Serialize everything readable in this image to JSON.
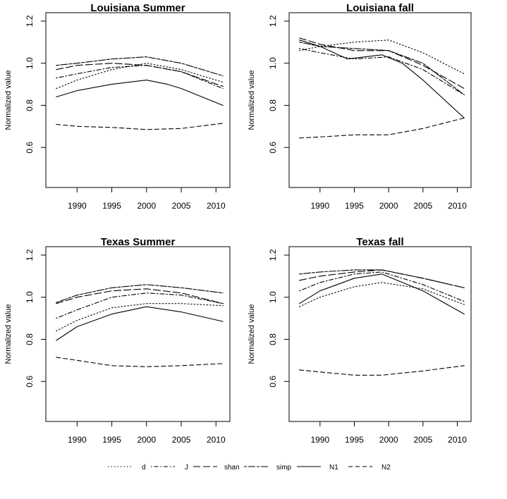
{
  "chart_data": [
    {
      "type": "line",
      "title": "Louisiana Summer",
      "xlabel": "",
      "ylabel": "Normalized value",
      "xlim": [
        1985.5,
        2012
      ],
      "ylim": [
        0.41,
        1.24
      ],
      "xticks": [
        1990,
        1995,
        2000,
        2005,
        2010
      ],
      "yticks": [
        0.6,
        0.8,
        1.0,
        1.2
      ],
      "series": [
        {
          "name": "d",
          "x": [
            1987,
            1990,
            1995,
            2000,
            2005,
            2011
          ],
          "values": [
            0.88,
            0.92,
            0.97,
            1.0,
            0.97,
            0.91
          ]
        },
        {
          "name": "J",
          "x": [
            1987,
            1990,
            1995,
            2000,
            2005,
            2011
          ],
          "values": [
            0.93,
            0.95,
            0.98,
            0.99,
            0.96,
            0.88
          ]
        },
        {
          "name": "shan",
          "x": [
            1987,
            1990,
            1995,
            2000,
            2005,
            2011
          ],
          "values": [
            0.97,
            0.99,
            1.0,
            0.99,
            0.96,
            0.89
          ]
        },
        {
          "name": "simp",
          "x": [
            1987,
            1990,
            1995,
            2000,
            2005,
            2011
          ],
          "values": [
            0.99,
            1.0,
            1.02,
            1.03,
            1.0,
            0.94
          ]
        },
        {
          "name": "N1",
          "x": [
            1987,
            1990,
            1995,
            2000,
            2003,
            2005,
            2011
          ],
          "values": [
            0.84,
            0.87,
            0.9,
            0.92,
            0.9,
            0.88,
            0.8
          ]
        },
        {
          "name": "N2",
          "x": [
            1987,
            1990,
            1995,
            2000,
            2005,
            2011
          ],
          "values": [
            0.71,
            0.7,
            0.695,
            0.685,
            0.69,
            0.715
          ]
        }
      ]
    },
    {
      "type": "line",
      "title": "Louisiana fall",
      "xlabel": "",
      "ylabel": "Normalized value",
      "xlim": [
        1985.5,
        2012
      ],
      "ylim": [
        0.41,
        1.24
      ],
      "xticks": [
        1990,
        1995,
        2000,
        2005,
        2010
      ],
      "yticks": [
        0.6,
        0.8,
        1.0,
        1.2
      ],
      "series": [
        {
          "name": "d",
          "x": [
            1987,
            1990,
            1995,
            2000,
            2005,
            2011
          ],
          "values": [
            1.06,
            1.08,
            1.1,
            1.11,
            1.05,
            0.95
          ]
        },
        {
          "name": "J",
          "x": [
            1987,
            1990,
            1995,
            2000,
            2005,
            2011
          ],
          "values": [
            1.07,
            1.05,
            1.02,
            1.03,
            0.97,
            0.85
          ]
        },
        {
          "name": "shan",
          "x": [
            1987,
            1990,
            1995,
            2000,
            2005,
            2011
          ],
          "values": [
            1.12,
            1.09,
            1.06,
            1.06,
            0.99,
            0.88
          ]
        },
        {
          "name": "simp",
          "x": [
            1987,
            1990,
            1995,
            2000,
            2005,
            2011
          ],
          "values": [
            1.1,
            1.08,
            1.07,
            1.06,
            1.0,
            0.85
          ]
        },
        {
          "name": "N1",
          "x": [
            1987,
            1990,
            1994,
            1999,
            2002,
            2005,
            2011
          ],
          "values": [
            1.11,
            1.08,
            1.02,
            1.04,
            1.0,
            0.92,
            0.74
          ]
        },
        {
          "name": "N2",
          "x": [
            1987,
            1990,
            1995,
            2000,
            2005,
            2011
          ],
          "values": [
            0.645,
            0.65,
            0.66,
            0.66,
            0.69,
            0.74
          ]
        }
      ]
    },
    {
      "type": "line",
      "title": "Texas Summer",
      "xlabel": "",
      "ylabel": "Normalized value",
      "xlim": [
        1985.5,
        2012
      ],
      "ylim": [
        0.41,
        1.24
      ],
      "xticks": [
        1990,
        1995,
        2000,
        2005,
        2010
      ],
      "yticks": [
        0.6,
        0.8,
        1.0,
        1.2
      ],
      "series": [
        {
          "name": "d",
          "x": [
            1987,
            1990,
            1995,
            2000,
            2005,
            2011
          ],
          "values": [
            0.84,
            0.89,
            0.95,
            0.97,
            0.97,
            0.96
          ]
        },
        {
          "name": "J",
          "x": [
            1987,
            1990,
            1995,
            2000,
            2005,
            2011
          ],
          "values": [
            0.9,
            0.94,
            1.0,
            1.02,
            1.01,
            0.97
          ]
        },
        {
          "name": "shan",
          "x": [
            1987,
            1990,
            1995,
            2000,
            2005,
            2011
          ],
          "values": [
            0.97,
            1.0,
            1.03,
            1.04,
            1.02,
            0.97
          ]
        },
        {
          "name": "simp",
          "x": [
            1987,
            1990,
            1995,
            2000,
            2005,
            2011
          ],
          "values": [
            0.975,
            1.01,
            1.045,
            1.06,
            1.045,
            1.02
          ]
        },
        {
          "name": "N1",
          "x": [
            1987,
            1990,
            1995,
            2000,
            2005,
            2011
          ],
          "values": [
            0.795,
            0.86,
            0.92,
            0.955,
            0.93,
            0.885
          ]
        },
        {
          "name": "N2",
          "x": [
            1987,
            1990,
            1995,
            2000,
            2005,
            2011
          ],
          "values": [
            0.715,
            0.7,
            0.675,
            0.67,
            0.675,
            0.685
          ]
        }
      ]
    },
    {
      "type": "line",
      "title": "Texas fall",
      "xlabel": "",
      "ylabel": "Normalized value",
      "xlim": [
        1985.5,
        2012
      ],
      "ylim": [
        0.41,
        1.24
      ],
      "xticks": [
        1990,
        1995,
        2000,
        2005,
        2010
      ],
      "yticks": [
        0.6,
        0.8,
        1.0,
        1.2
      ],
      "series": [
        {
          "name": "d",
          "x": [
            1987,
            1990,
            1995,
            1999,
            2005,
            2011
          ],
          "values": [
            0.955,
            1.0,
            1.05,
            1.07,
            1.04,
            0.965
          ]
        },
        {
          "name": "J",
          "x": [
            1987,
            1990,
            1995,
            1999,
            2005,
            2011
          ],
          "values": [
            1.03,
            1.07,
            1.11,
            1.12,
            1.06,
            0.98
          ]
        },
        {
          "name": "shan",
          "x": [
            1987,
            1990,
            1995,
            1999,
            2005,
            2011
          ],
          "values": [
            1.08,
            1.1,
            1.12,
            1.13,
            1.09,
            1.045
          ]
        },
        {
          "name": "simp",
          "x": [
            1987,
            1990,
            1995,
            1999,
            2005,
            2011
          ],
          "values": [
            1.11,
            1.12,
            1.13,
            1.13,
            1.09,
            1.045
          ]
        },
        {
          "name": "N1",
          "x": [
            1987,
            1990,
            1995,
            1999,
            2005,
            2011
          ],
          "values": [
            0.97,
            1.03,
            1.09,
            1.11,
            1.03,
            0.92
          ]
        },
        {
          "name": "N2",
          "x": [
            1987,
            1990,
            1995,
            1999,
            2005,
            2011
          ],
          "values": [
            0.655,
            0.645,
            0.63,
            0.63,
            0.65,
            0.675
          ]
        }
      ]
    }
  ],
  "legend": {
    "placement": "bottom",
    "items": [
      {
        "name": "d",
        "style": "dotted"
      },
      {
        "name": "J",
        "style": "dotdash"
      },
      {
        "name": "shan",
        "style": "longdash"
      },
      {
        "name": "simp",
        "style": "twodash"
      },
      {
        "name": "N1",
        "style": "solid"
      },
      {
        "name": "N2",
        "style": "dashed"
      }
    ]
  },
  "line_styles": {
    "d": "dotted",
    "J": "dotdash",
    "shan": "longdash",
    "simp": "twodash",
    "N1": "solid",
    "N2": "dashed"
  },
  "colors": {
    "line": "#000000",
    "background": "#ffffff"
  }
}
